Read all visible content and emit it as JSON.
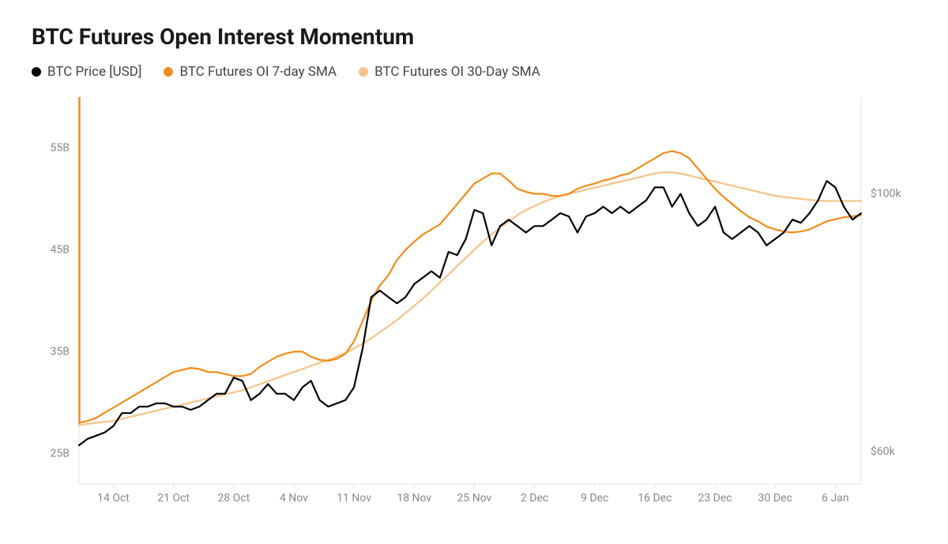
{
  "title": "BTC Futures Open Interest Momentum",
  "legend": [
    {
      "label": "BTC Price [USD]",
      "color": "#000000"
    },
    {
      "label": "BTC Futures OI 7-day SMA",
      "color": "#f28c1a"
    },
    {
      "label": "BTC Futures OI 30-Day SMA",
      "color": "#f5c389"
    }
  ],
  "chart": {
    "type": "line",
    "background_color": "#ffffff",
    "grid_color": "#e8e8e8",
    "axis_line_color": "#e3e3e3",
    "left_ticks": {
      "label_color": "#888",
      "labels": [
        "25B",
        "35B",
        "45B",
        "55B"
      ],
      "values": [
        25,
        35,
        45,
        55
      ],
      "min": 22,
      "max": 60
    },
    "right_ticks": {
      "label_color": "#888",
      "labels": [
        "$60k",
        "$100k"
      ],
      "values": [
        60,
        100
      ],
      "min": 55,
      "max": 115
    },
    "x_ticks": {
      "label_color": "#888",
      "labels": [
        "14 Oct",
        "21 Oct",
        "28 Oct",
        "4 Nov",
        "11 Nov",
        "18 Nov",
        "25 Nov",
        "2 Dec",
        "9 Dec",
        "16 Dec",
        "23 Dec",
        "30 Dec",
        "6 Jan"
      ],
      "indices": [
        4,
        11,
        18,
        25,
        32,
        39,
        46,
        53,
        60,
        67,
        74,
        81,
        88
      ]
    },
    "line_width": 2.2,
    "plot_font_size": 14,
    "title_font_size": 28,
    "legend_font_size": 17,
    "n_points": 92,
    "series": [
      {
        "name": "BTC Price [USD]",
        "axis": "right",
        "color": "#000000",
        "y": [
          61,
          62,
          62.5,
          63,
          64,
          66,
          66,
          67,
          67,
          67.5,
          67.5,
          67,
          67,
          66.5,
          67,
          68,
          69,
          69,
          71.5,
          71,
          68,
          69,
          70.5,
          69,
          69,
          68,
          70,
          71,
          68,
          67,
          67.5,
          68,
          70,
          76,
          84,
          85,
          84,
          83,
          84,
          86,
          87,
          88,
          87,
          91,
          90.5,
          93,
          97.5,
          97,
          92,
          95,
          96,
          95,
          94,
          95,
          95,
          96,
          97,
          96.5,
          94,
          96.5,
          97,
          98,
          97,
          98,
          97,
          98,
          99,
          101,
          101,
          98,
          100,
          97,
          95,
          96,
          98,
          94,
          93,
          94,
          95,
          94,
          92,
          93,
          94,
          96,
          95.5,
          97,
          99,
          102,
          101,
          98,
          96,
          97
        ]
      },
      {
        "name": "BTC Futures OI 7-day SMA",
        "axis": "left",
        "color": "#f28c1a",
        "y": [
          28,
          28.2,
          28.5,
          29,
          29.5,
          30,
          30.5,
          31,
          31.5,
          32,
          32.5,
          33,
          33.2,
          33.4,
          33.3,
          33,
          33,
          32.8,
          32.6,
          32.6,
          32.8,
          33.5,
          34,
          34.5,
          34.8,
          35,
          35,
          34.5,
          34.2,
          34.1,
          34.3,
          34.8,
          36,
          38,
          40,
          41.5,
          42.5,
          44,
          45,
          45.8,
          46.5,
          47,
          47.5,
          48.5,
          49.5,
          50.5,
          51.5,
          52,
          52.5,
          52.5,
          51.8,
          51,
          50.7,
          50.5,
          50.5,
          50.3,
          50.3,
          50.5,
          51,
          51.3,
          51.5,
          51.8,
          52,
          52.3,
          52.5,
          53,
          53.5,
          54,
          54.5,
          54.7,
          54.5,
          54,
          53,
          52,
          51,
          50.2,
          49.5,
          48.8,
          48.2,
          47.8,
          47.3,
          47,
          46.8,
          46.7,
          46.8,
          47,
          47.4,
          47.8,
          48,
          48.2,
          48.3,
          48.4
        ]
      },
      {
        "name": "BTC Futures OI 30-Day SMA",
        "axis": "left",
        "color": "#f5c389",
        "y": [
          27.8,
          27.9,
          28,
          28.1,
          28.2,
          28.4,
          28.6,
          28.8,
          29,
          29.2,
          29.4,
          29.6,
          29.8,
          30,
          30.2,
          30.4,
          30.6,
          30.8,
          31,
          31.2,
          31.5,
          31.8,
          32.1,
          32.4,
          32.7,
          33,
          33.3,
          33.6,
          33.9,
          34.2,
          34.5,
          34.9,
          35.3,
          35.8,
          36.3,
          36.9,
          37.5,
          38.1,
          38.8,
          39.5,
          40.2,
          41,
          41.8,
          42.6,
          43.4,
          44.2,
          45,
          45.8,
          46.5,
          47.2,
          47.8,
          48.4,
          48.9,
          49.3,
          49.7,
          50,
          50.3,
          50.5,
          50.7,
          50.9,
          51.1,
          51.3,
          51.5,
          51.7,
          51.9,
          52.1,
          52.3,
          52.5,
          52.6,
          52.6,
          52.5,
          52.3,
          52.1,
          51.9,
          51.7,
          51.5,
          51.3,
          51.1,
          50.9,
          50.7,
          50.5,
          50.3,
          50.2,
          50.1,
          50,
          49.9,
          49.85,
          49.8,
          49.8,
          49.8,
          49.8,
          49.8
        ]
      }
    ]
  }
}
